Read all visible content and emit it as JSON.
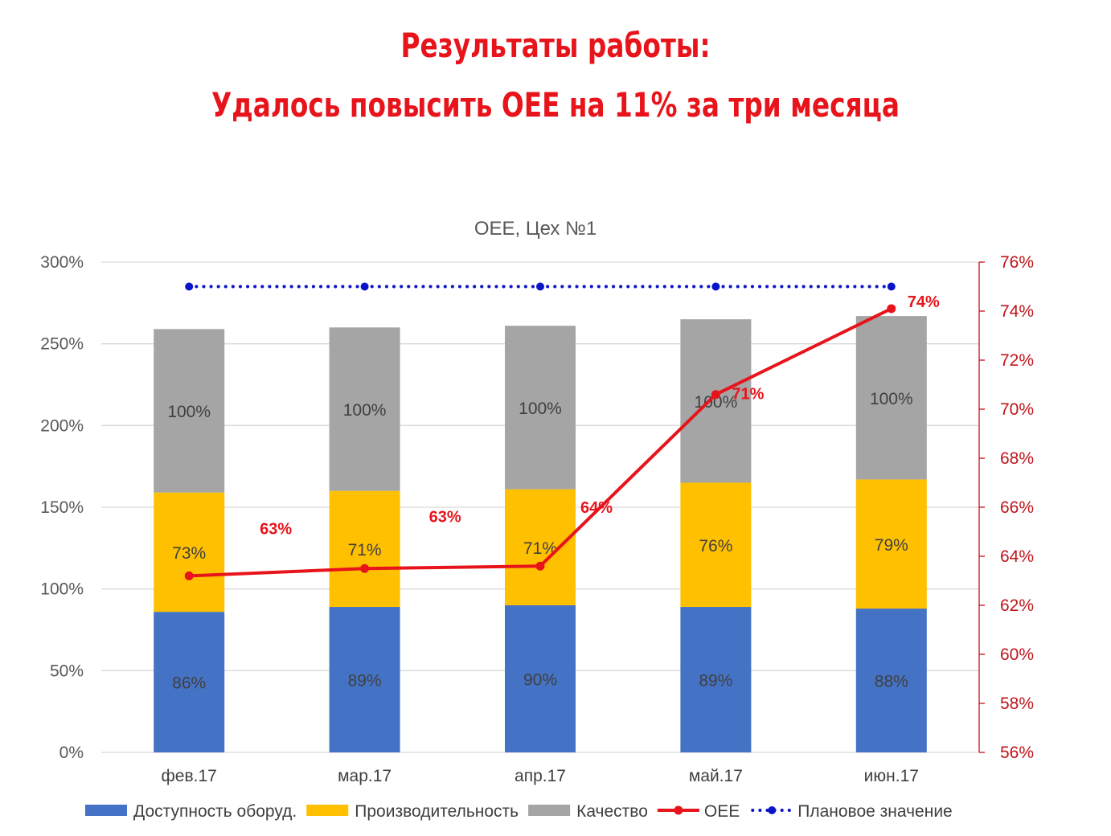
{
  "headline": {
    "line1": "Результаты работы:",
    "line2": "Удалось повысить ОЕЕ на 11% за три месяца"
  },
  "colors": {
    "availability": "#4472c4",
    "performance": "#ffc000",
    "quality": "#a5a5a5",
    "oee": "#e8141b",
    "plan": "#0a14c8",
    "right_axis": "#c0141b"
  },
  "chart_data": {
    "type": "bar",
    "stacked": true,
    "title": "OEE, Цех №1",
    "categories": [
      "фев.17",
      "мар.17",
      "апр.17",
      "май.17",
      "июн.17"
    ],
    "series": [
      {
        "name": "Доступность оборуд.",
        "type": "bar",
        "axis": "left",
        "values": [
          86,
          89,
          90,
          89,
          88
        ],
        "labels": [
          "86%",
          "89%",
          "90%",
          "89%",
          "88%"
        ]
      },
      {
        "name": "Производительность",
        "type": "bar",
        "axis": "left",
        "values": [
          73,
          71,
          71,
          76,
          79
        ],
        "labels": [
          "73%",
          "71%",
          "71%",
          "76%",
          "79%"
        ]
      },
      {
        "name": "Качество",
        "type": "bar",
        "axis": "left",
        "values": [
          100,
          100,
          100,
          100,
          100
        ],
        "labels": [
          "100%",
          "100%",
          "100%",
          "100%",
          "100%"
        ]
      },
      {
        "name": "OEE",
        "type": "line",
        "axis": "right",
        "values": [
          63.2,
          63.5,
          63.6,
          70.6,
          74.1
        ],
        "labels": [
          "63%",
          "63%",
          "64%",
          "71%",
          "74%"
        ]
      },
      {
        "name": "Плановое значение",
        "type": "line",
        "style": "dotted",
        "axis": "right",
        "values": [
          75,
          75,
          75,
          75,
          75
        ]
      }
    ],
    "y_left": {
      "min": 0,
      "max": 300,
      "ticks": [
        "0%",
        "50%",
        "100%",
        "150%",
        "200%",
        "250%",
        "300%"
      ]
    },
    "y_right": {
      "min": 56,
      "max": 76,
      "ticks": [
        "56%",
        "58%",
        "60%",
        "62%",
        "64%",
        "66%",
        "68%",
        "70%",
        "72%",
        "74%",
        "76%"
      ]
    },
    "grid": true,
    "legend": "bottom"
  }
}
